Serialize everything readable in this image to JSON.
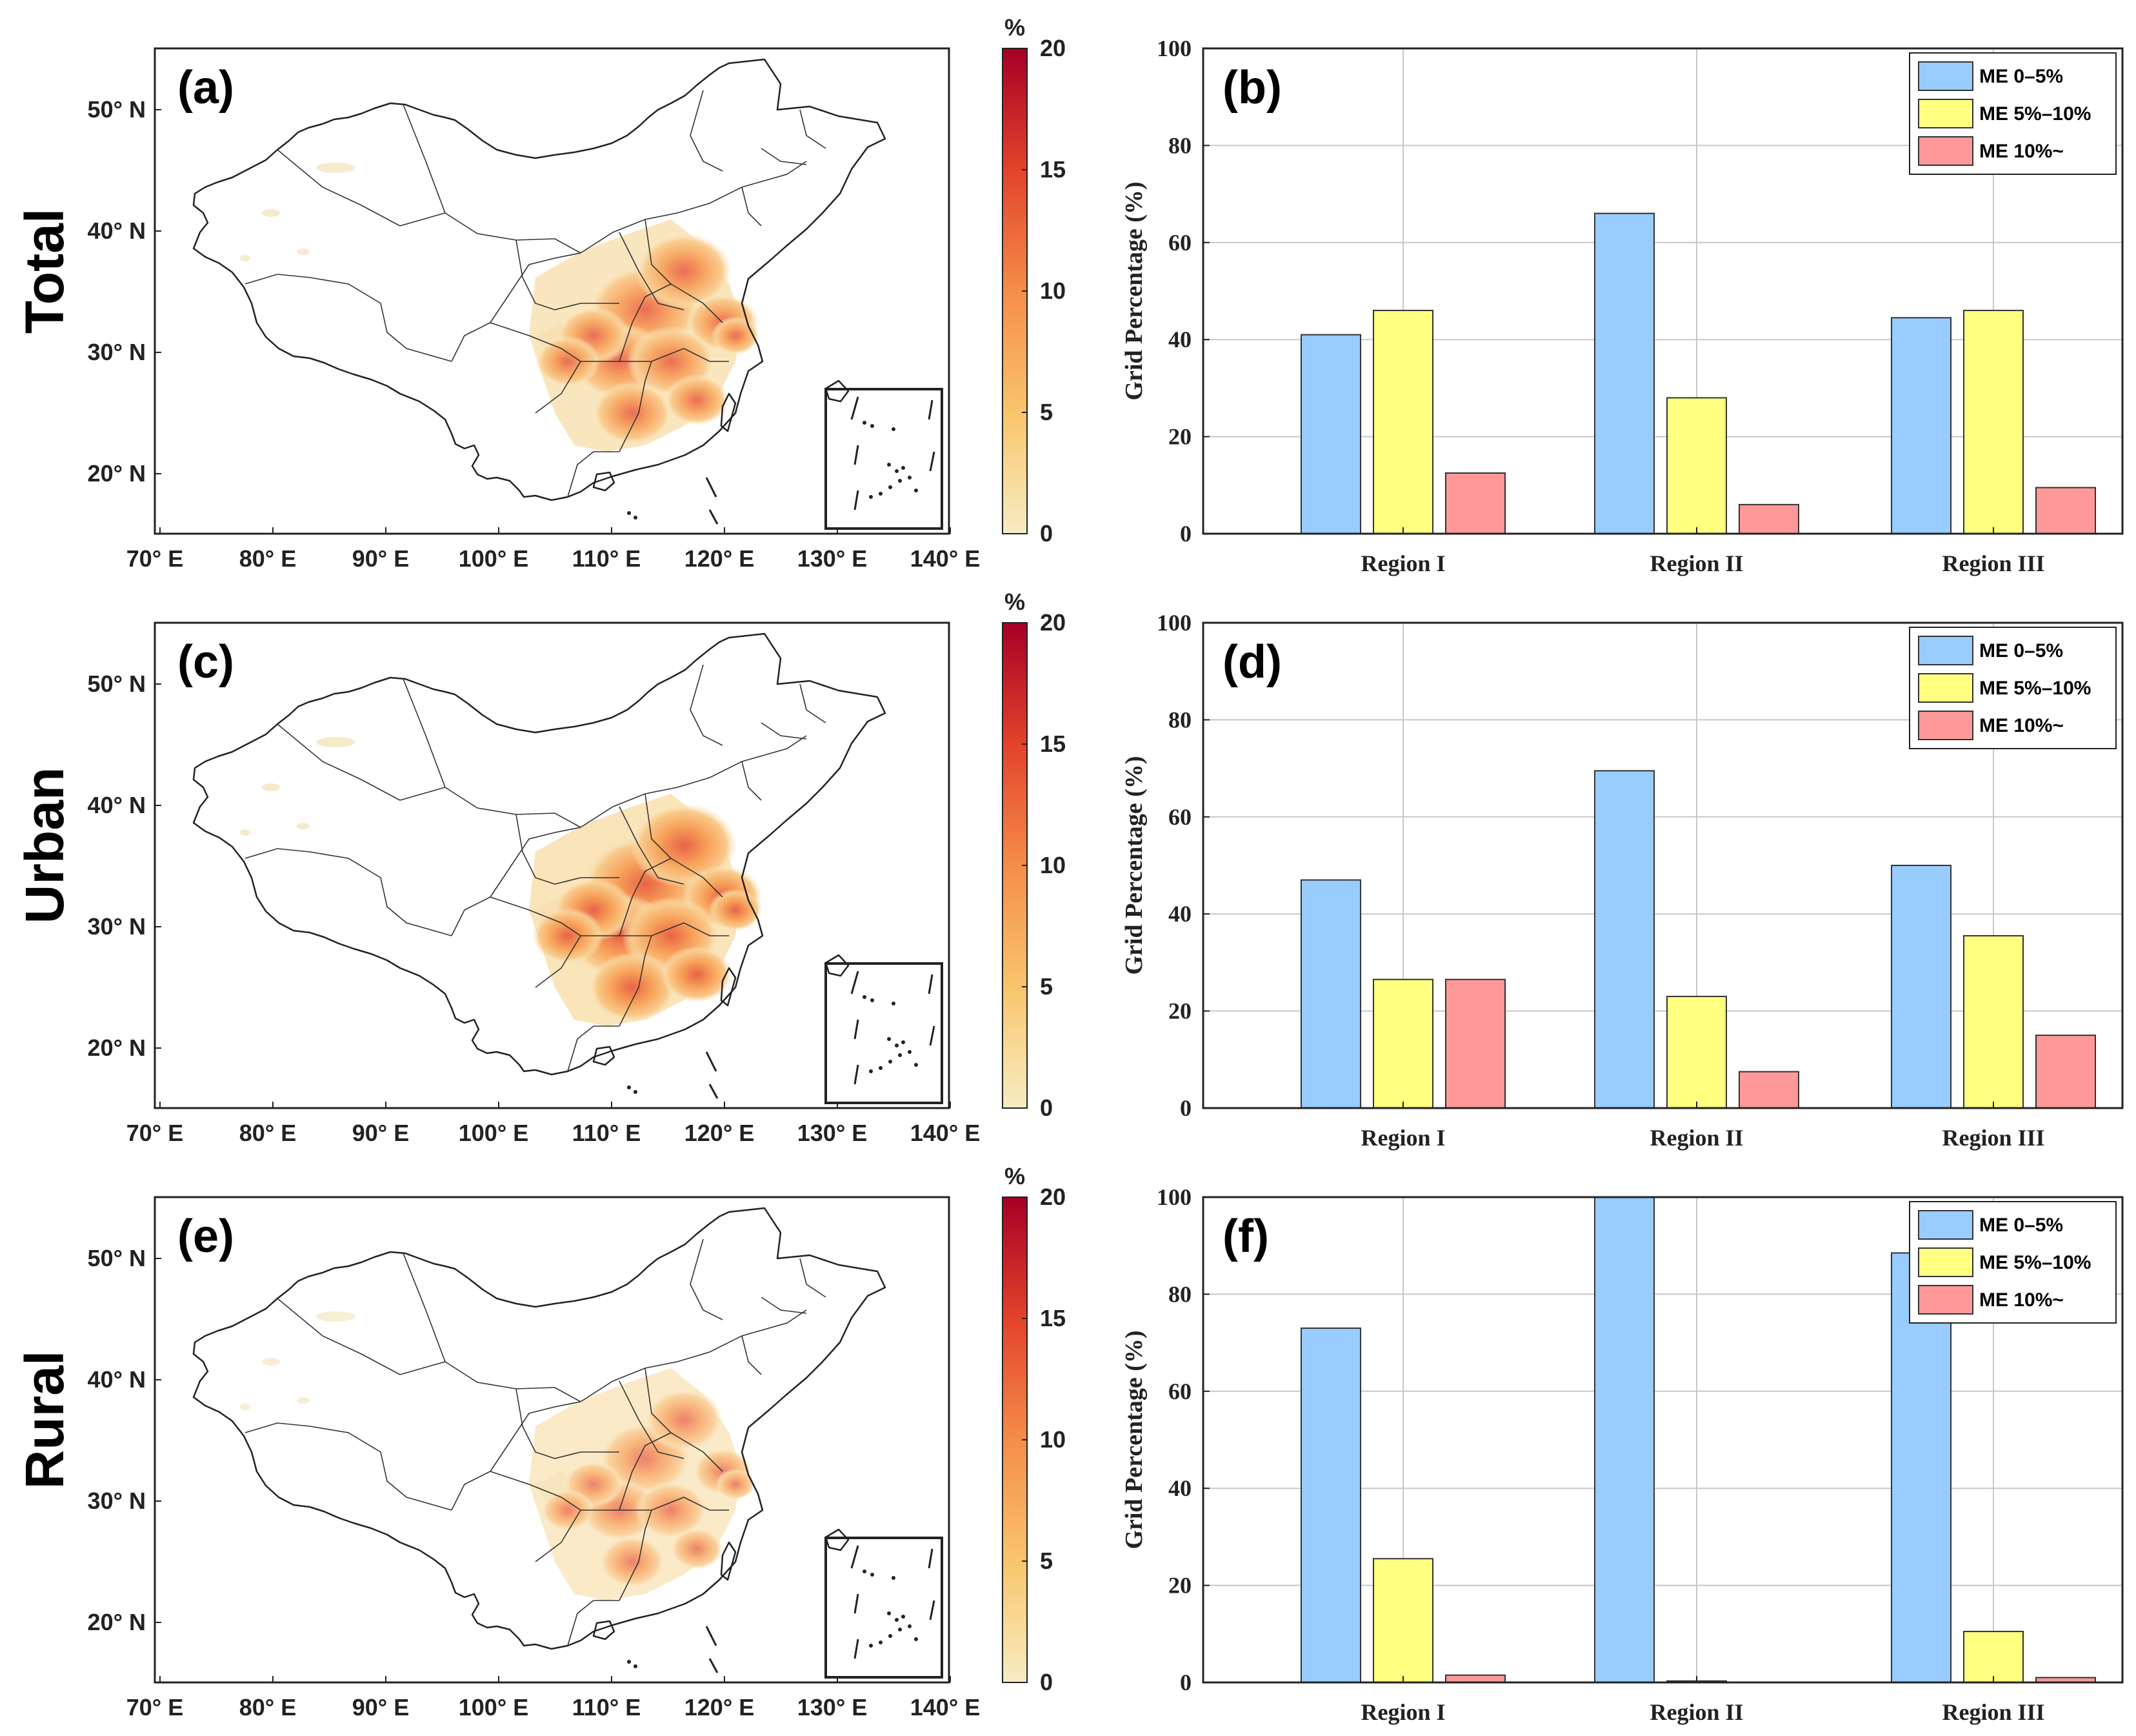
{
  "rows": [
    "Total",
    "Urban",
    "Rural"
  ],
  "map": {
    "x_ticks": [
      "70° E",
      "80° E",
      "90° E",
      "100° E",
      "110° E",
      "120° E",
      "130° E",
      "140° E"
    ],
    "y_ticks": [
      "50° N",
      "40° N",
      "30° N",
      "20° N"
    ],
    "colorbar": {
      "unit": "%",
      "ticks": [
        "20",
        "15",
        "10",
        "5",
        "0"
      ],
      "range": [
        0,
        20
      ]
    },
    "panels": [
      "(a)",
      "(c)",
      "(e)"
    ],
    "intensity": [
      0.55,
      0.68,
      0.32
    ]
  },
  "legend": [
    "ME 0–5%",
    "ME 5%–10%",
    "ME 10%~"
  ],
  "colors": {
    "ME 0–5%": "#99ccff",
    "ME 5%–10%": "#ffff80",
    "ME 10%~": "#ff9999"
  },
  "chart_data": [
    {
      "panel": "(b)",
      "type": "bar",
      "ylabel": "Grid Percentage (%)",
      "ylim": [
        0,
        100
      ],
      "yticks": [
        "100",
        "80",
        "60",
        "40",
        "20",
        "0"
      ],
      "categories": [
        "Region I",
        "Region II",
        "Region III"
      ],
      "series": [
        {
          "name": "ME 0–5%",
          "values": [
            41,
            66,
            44.5
          ]
        },
        {
          "name": "ME 5%–10%",
          "values": [
            46,
            28,
            46
          ]
        },
        {
          "name": "ME 10%~",
          "values": [
            12.5,
            6,
            9.5
          ]
        }
      ]
    },
    {
      "panel": "(d)",
      "type": "bar",
      "ylabel": "Grid Percentage (%)",
      "ylim": [
        0,
        100
      ],
      "yticks": [
        "100",
        "80",
        "60",
        "40",
        "20",
        "0"
      ],
      "categories": [
        "Region I",
        "Region II",
        "Region III"
      ],
      "series": [
        {
          "name": "ME 0–5%",
          "values": [
            47,
            69.5,
            50
          ]
        },
        {
          "name": "ME 5%–10%",
          "values": [
            26.5,
            23,
            35.5
          ]
        },
        {
          "name": "ME 10%~",
          "values": [
            26.5,
            7.5,
            15
          ]
        }
      ]
    },
    {
      "panel": "(f)",
      "type": "bar",
      "ylabel": "Grid Percentage (%)",
      "ylim": [
        0,
        100
      ],
      "yticks": [
        "100",
        "80",
        "60",
        "40",
        "20",
        "0"
      ],
      "categories": [
        "Region I",
        "Region II",
        "Region III"
      ],
      "series": [
        {
          "name": "ME 0–5%",
          "values": [
            73,
            100,
            88.5
          ]
        },
        {
          "name": "ME 5%–10%",
          "values": [
            25.5,
            0.3,
            10.5
          ]
        },
        {
          "name": "ME 10%~",
          "values": [
            1.5,
            0,
            1
          ]
        }
      ]
    }
  ]
}
